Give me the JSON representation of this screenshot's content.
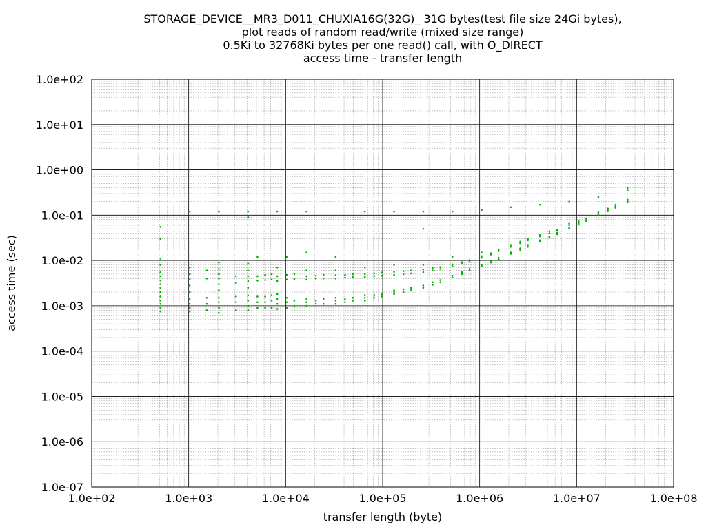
{
  "chart_data": {
    "type": "scatter",
    "title": [
      "STORAGE_DEVICE__MR3_D011_CHUXIA16G(32G)_ 31G bytes(test file size 24Gi bytes),",
      "plot reads of random read/write (mixed size range)",
      "0.5Ki to 32768Ki bytes per one read() call, with O_DIRECT",
      "access time - transfer length"
    ],
    "xlabel": "transfer length (byte)",
    "ylabel": "access time (sec)",
    "x_scale": "log",
    "y_scale": "log",
    "xlim": [
      100,
      100000000
    ],
    "ylim": [
      1e-07,
      100
    ],
    "x_ticks": [
      {
        "value": 100,
        "label": "1.0e+02"
      },
      {
        "value": 1000,
        "label": "1.0e+03"
      },
      {
        "value": 10000,
        "label": "1.0e+04"
      },
      {
        "value": 100000,
        "label": "1.0e+05"
      },
      {
        "value": 1000000,
        "label": "1.0e+06"
      },
      {
        "value": 10000000,
        "label": "1.0e+07"
      },
      {
        "value": 100000000,
        "label": "1.0e+08"
      }
    ],
    "y_ticks": [
      {
        "value": 100,
        "label": "1.0e+02"
      },
      {
        "value": 10,
        "label": "1.0e+01"
      },
      {
        "value": 1,
        "label": "1.0e+00"
      },
      {
        "value": 0.1,
        "label": "1.0e-01"
      },
      {
        "value": 0.01,
        "label": "1.0e-02"
      },
      {
        "value": 0.001,
        "label": "1.0e-03"
      },
      {
        "value": 0.0001,
        "label": "1.0e-04"
      },
      {
        "value": 1e-05,
        "label": "1.0e-05"
      },
      {
        "value": 1e-06,
        "label": "1.0e-06"
      },
      {
        "value": 1e-07,
        "label": "1.0e-07"
      }
    ],
    "grid": true,
    "minor_grid": true,
    "point_color": "#00b000",
    "series": [
      {
        "name": "",
        "points": [
          [
            512,
            0.00075
          ],
          [
            512,
            0.0009
          ],
          [
            512,
            0.0011
          ],
          [
            512,
            0.0013
          ],
          [
            512,
            0.0016
          ],
          [
            512,
            0.002
          ],
          [
            512,
            0.0025
          ],
          [
            512,
            0.003
          ],
          [
            512,
            0.0036
          ],
          [
            512,
            0.0045
          ],
          [
            512,
            0.0055
          ],
          [
            512,
            0.008
          ],
          [
            512,
            0.011
          ],
          [
            512,
            0.03
          ],
          [
            512,
            0.055
          ],
          [
            1024,
            0.00075
          ],
          [
            1024,
            0.0009
          ],
          [
            1024,
            0.0011
          ],
          [
            1024,
            0.0014
          ],
          [
            1024,
            0.002
          ],
          [
            1024,
            0.0028
          ],
          [
            1024,
            0.0038
          ],
          [
            1024,
            0.005
          ],
          [
            1024,
            0.007
          ],
          [
            1024,
            0.12
          ],
          [
            1536,
            0.0008
          ],
          [
            1536,
            0.0011
          ],
          [
            1536,
            0.0015
          ],
          [
            1536,
            0.004
          ],
          [
            1536,
            0.006
          ],
          [
            2048,
            0.0007
          ],
          [
            2048,
            0.0009
          ],
          [
            2048,
            0.0012
          ],
          [
            2048,
            0.0015
          ],
          [
            2048,
            0.0022
          ],
          [
            2048,
            0.003
          ],
          [
            2048,
            0.004
          ],
          [
            2048,
            0.005
          ],
          [
            2048,
            0.0065
          ],
          [
            2048,
            0.009
          ],
          [
            2048,
            0.12
          ],
          [
            3072,
            0.0008
          ],
          [
            3072,
            0.0012
          ],
          [
            3072,
            0.0016
          ],
          [
            3072,
            0.0032
          ],
          [
            3072,
            0.0045
          ],
          [
            4096,
            0.0008
          ],
          [
            4096,
            0.001
          ],
          [
            4096,
            0.0013
          ],
          [
            4096,
            0.0017
          ],
          [
            4096,
            0.0025
          ],
          [
            4096,
            0.0035
          ],
          [
            4096,
            0.0045
          ],
          [
            4096,
            0.006
          ],
          [
            4096,
            0.0085
          ],
          [
            4096,
            0.12
          ],
          [
            4096,
            0.09
          ],
          [
            5120,
            0.0009
          ],
          [
            5120,
            0.0012
          ],
          [
            5120,
            0.0016
          ],
          [
            5120,
            0.0036
          ],
          [
            5120,
            0.0045
          ],
          [
            5120,
            0.012
          ],
          [
            6144,
            0.0009
          ],
          [
            6144,
            0.0012
          ],
          [
            6144,
            0.0016
          ],
          [
            6144,
            0.0037
          ],
          [
            6144,
            0.0048
          ],
          [
            7168,
            0.0009
          ],
          [
            7168,
            0.0013
          ],
          [
            7168,
            0.0017
          ],
          [
            7168,
            0.0038
          ],
          [
            7168,
            0.005
          ],
          [
            8192,
            0.00085
          ],
          [
            8192,
            0.0011
          ],
          [
            8192,
            0.0014
          ],
          [
            8192,
            0.0018
          ],
          [
            8192,
            0.0035
          ],
          [
            8192,
            0.0045
          ],
          [
            8192,
            0.007
          ],
          [
            8192,
            0.12
          ],
          [
            10240,
            0.0009
          ],
          [
            10240,
            0.0012
          ],
          [
            10240,
            0.0015
          ],
          [
            10240,
            0.0038
          ],
          [
            10240,
            0.0048
          ],
          [
            10240,
            0.012
          ],
          [
            12288,
            0.001
          ],
          [
            12288,
            0.0013
          ],
          [
            12288,
            0.0039
          ],
          [
            12288,
            0.005
          ],
          [
            16384,
            0.001
          ],
          [
            16384,
            0.0012
          ],
          [
            16384,
            0.0014
          ],
          [
            16384,
            0.0038
          ],
          [
            16384,
            0.0045
          ],
          [
            16384,
            0.006
          ],
          [
            16384,
            0.015
          ],
          [
            16384,
            0.12
          ],
          [
            20480,
            0.0011
          ],
          [
            20480,
            0.0013
          ],
          [
            20480,
            0.004
          ],
          [
            20480,
            0.0046
          ],
          [
            24576,
            0.0011
          ],
          [
            24576,
            0.0014
          ],
          [
            24576,
            0.004
          ],
          [
            24576,
            0.0048
          ],
          [
            32768,
            0.0011
          ],
          [
            32768,
            0.0013
          ],
          [
            32768,
            0.0015
          ],
          [
            32768,
            0.004
          ],
          [
            32768,
            0.0047
          ],
          [
            32768,
            0.006
          ],
          [
            32768,
            0.012
          ],
          [
            40960,
            0.0012
          ],
          [
            40960,
            0.0014
          ],
          [
            40960,
            0.0042
          ],
          [
            40960,
            0.0048
          ],
          [
            49152,
            0.0013
          ],
          [
            49152,
            0.0015
          ],
          [
            49152,
            0.0043
          ],
          [
            49152,
            0.005
          ],
          [
            65536,
            0.0013
          ],
          [
            65536,
            0.0015
          ],
          [
            65536,
            0.0017
          ],
          [
            65536,
            0.0043
          ],
          [
            65536,
            0.005
          ],
          [
            65536,
            0.007
          ],
          [
            65536,
            0.12
          ],
          [
            81920,
            0.0015
          ],
          [
            81920,
            0.0017
          ],
          [
            81920,
            0.0045
          ],
          [
            81920,
            0.0052
          ],
          [
            98304,
            0.0016
          ],
          [
            98304,
            0.0018
          ],
          [
            98304,
            0.0046
          ],
          [
            98304,
            0.0054
          ],
          [
            131072,
            0.0018
          ],
          [
            131072,
            0.002
          ],
          [
            131072,
            0.0022
          ],
          [
            131072,
            0.0048
          ],
          [
            131072,
            0.0056
          ],
          [
            131072,
            0.008
          ],
          [
            131072,
            0.12
          ],
          [
            163840,
            0.002
          ],
          [
            163840,
            0.0023
          ],
          [
            163840,
            0.005
          ],
          [
            163840,
            0.0058
          ],
          [
            196608,
            0.0022
          ],
          [
            196608,
            0.0025
          ],
          [
            196608,
            0.0052
          ],
          [
            196608,
            0.006
          ],
          [
            262144,
            0.0025
          ],
          [
            262144,
            0.0028
          ],
          [
            262144,
            0.0055
          ],
          [
            262144,
            0.0063
          ],
          [
            262144,
            0.008
          ],
          [
            262144,
            0.05
          ],
          [
            262144,
            0.12
          ],
          [
            327680,
            0.0029
          ],
          [
            327680,
            0.0033
          ],
          [
            327680,
            0.006
          ],
          [
            327680,
            0.0068
          ],
          [
            393216,
            0.0033
          ],
          [
            393216,
            0.0037
          ],
          [
            393216,
            0.0065
          ],
          [
            393216,
            0.0072
          ],
          [
            524288,
            0.0042
          ],
          [
            524288,
            0.0046
          ],
          [
            524288,
            0.0075
          ],
          [
            524288,
            0.0082
          ],
          [
            524288,
            0.012
          ],
          [
            524288,
            0.12
          ],
          [
            655360,
            0.005
          ],
          [
            655360,
            0.0055
          ],
          [
            655360,
            0.0085
          ],
          [
            655360,
            0.0092
          ],
          [
            786432,
            0.006
          ],
          [
            786432,
            0.0065
          ],
          [
            786432,
            0.0095
          ],
          [
            786432,
            0.0102
          ],
          [
            1048576,
            0.0075
          ],
          [
            1048576,
            0.008
          ],
          [
            1048576,
            0.0115
          ],
          [
            1048576,
            0.0125
          ],
          [
            1048576,
            0.015
          ],
          [
            1048576,
            0.13
          ],
          [
            1310720,
            0.009
          ],
          [
            1310720,
            0.0098
          ],
          [
            1310720,
            0.0135
          ],
          [
            1310720,
            0.0145
          ],
          [
            1572864,
            0.0105
          ],
          [
            1572864,
            0.0115
          ],
          [
            1572864,
            0.016
          ],
          [
            1572864,
            0.0175
          ],
          [
            2097152,
            0.014
          ],
          [
            2097152,
            0.015
          ],
          [
            2097152,
            0.02
          ],
          [
            2097152,
            0.022
          ],
          [
            2097152,
            0.15
          ],
          [
            2621440,
            0.017
          ],
          [
            2621440,
            0.0185
          ],
          [
            2621440,
            0.024
          ],
          [
            2621440,
            0.026
          ],
          [
            3145728,
            0.02
          ],
          [
            3145728,
            0.022
          ],
          [
            3145728,
            0.028
          ],
          [
            3145728,
            0.03
          ],
          [
            4194304,
            0.026
          ],
          [
            4194304,
            0.028
          ],
          [
            4194304,
            0.034
          ],
          [
            4194304,
            0.037
          ],
          [
            4194304,
            0.17
          ],
          [
            5242880,
            0.032
          ],
          [
            5242880,
            0.034
          ],
          [
            5242880,
            0.04
          ],
          [
            5242880,
            0.044
          ],
          [
            6291456,
            0.038
          ],
          [
            6291456,
            0.041
          ],
          [
            6291456,
            0.047
          ],
          [
            8388608,
            0.05
          ],
          [
            8388608,
            0.053
          ],
          [
            8388608,
            0.06
          ],
          [
            8388608,
            0.065
          ],
          [
            8388608,
            0.2
          ],
          [
            10485760,
            0.062
          ],
          [
            10485760,
            0.066
          ],
          [
            10485760,
            0.073
          ],
          [
            12582912,
            0.074
          ],
          [
            12582912,
            0.078
          ],
          [
            12582912,
            0.085
          ],
          [
            16777216,
            0.098
          ],
          [
            16777216,
            0.105
          ],
          [
            16777216,
            0.115
          ],
          [
            16777216,
            0.25
          ],
          [
            20971520,
            0.122
          ],
          [
            20971520,
            0.13
          ],
          [
            20971520,
            0.14
          ],
          [
            25165824,
            0.146
          ],
          [
            25165824,
            0.155
          ],
          [
            25165824,
            0.17
          ],
          [
            33554432,
            0.195
          ],
          [
            33554432,
            0.205
          ],
          [
            33554432,
            0.22
          ],
          [
            33554432,
            0.35
          ],
          [
            33554432,
            0.4
          ]
        ]
      }
    ]
  }
}
